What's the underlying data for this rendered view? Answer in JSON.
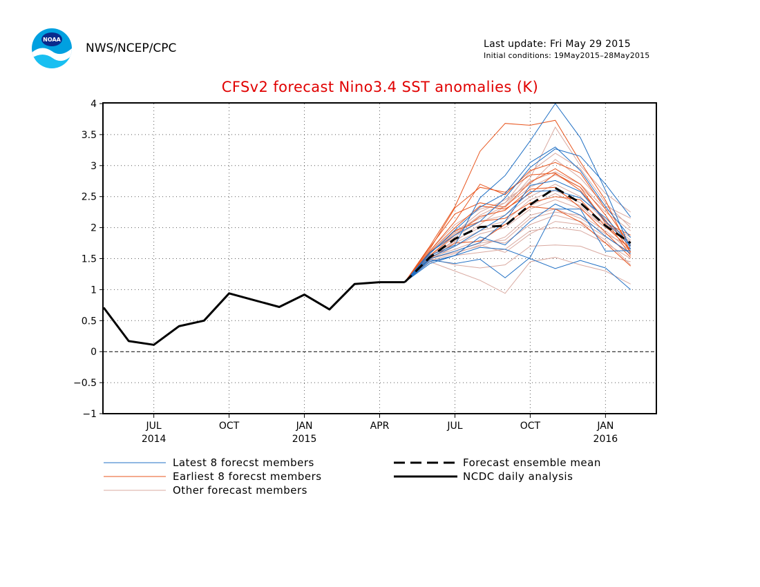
{
  "header": {
    "org": "NWS/NCEP/CPC",
    "logo_text": "NOAA",
    "last_update": "Last update: Fri May 29 2015",
    "initial_conditions": "Initial conditions: 19May2015–28May2015"
  },
  "colors": {
    "title": "#e00000",
    "latest": "#1f6fc4",
    "earliest": "#e8541c",
    "other": "#d9a9a0",
    "analysis": "#000000",
    "mean": "#000000"
  },
  "chart_data": {
    "type": "line",
    "title": "CFSv2 forecast Nino3.4 SST anomalies (K)",
    "xlabel": "",
    "ylabel": "",
    "ylim": [
      -1,
      4
    ],
    "yticks": [
      -1,
      -0.5,
      0,
      0.5,
      1,
      1.5,
      2,
      2.5,
      3,
      3.5,
      4
    ],
    "ytick_labels": [
      "−1",
      "−0.5",
      "0",
      "0.5",
      "1",
      "1.5",
      "2",
      "2.5",
      "3",
      "3.5",
      "4"
    ],
    "x_range": [
      "2014-05",
      "2016-03"
    ],
    "xticks": [
      {
        "month": "2014-07",
        "line1": "JUL",
        "line2": "2014"
      },
      {
        "month": "2014-10",
        "line1": "OCT",
        "line2": ""
      },
      {
        "month": "2015-01",
        "line1": "JAN",
        "line2": "2015"
      },
      {
        "month": "2015-04",
        "line1": "APR",
        "line2": ""
      },
      {
        "month": "2015-07",
        "line1": "JUL",
        "line2": ""
      },
      {
        "month": "2015-10",
        "line1": "OCT",
        "line2": ""
      },
      {
        "month": "2016-01",
        "line1": "JAN",
        "line2": "2016"
      }
    ],
    "grid": "dotted",
    "forecast_months": [
      "2015-05",
      "2015-06",
      "2015-07",
      "2015-08",
      "2015-09",
      "2015-10",
      "2015-11",
      "2015-12",
      "2016-01",
      "2016-02"
    ],
    "analysis": {
      "name": "NCDC daily analysis",
      "months": [
        "2014-05",
        "2014-06",
        "2014-07",
        "2014-08",
        "2014-09",
        "2014-10",
        "2014-11",
        "2014-12",
        "2015-01",
        "2015-02",
        "2015-03",
        "2015-04",
        "2015-05"
      ],
      "values": [
        0.71,
        0.17,
        0.11,
        0.41,
        0.5,
        0.94,
        0.83,
        0.72,
        0.92,
        0.68,
        1.09,
        1.12,
        1.12
      ]
    },
    "ensemble_mean": {
      "name": "Forecast ensemble mean",
      "values": [
        1.12,
        1.52,
        1.82,
        2.01,
        2.03,
        2.37,
        2.64,
        2.4,
        2.03,
        1.75
      ]
    },
    "latest_members": {
      "name": "Latest 8 forecst members",
      "series": [
        [
          1.12,
          1.42,
          1.55,
          1.68,
          1.65,
          1.5,
          1.34,
          1.47,
          1.35,
          1.0
        ],
        [
          1.12,
          1.55,
          1.72,
          2.48,
          2.84,
          3.4,
          4.0,
          3.45,
          2.6,
          1.65
        ],
        [
          1.12,
          1.48,
          1.42,
          1.49,
          1.19,
          1.52,
          2.3,
          2.3,
          1.62,
          1.63
        ],
        [
          1.12,
          1.6,
          1.88,
          2.1,
          2.48,
          2.97,
          3.27,
          3.15,
          2.7,
          2.17
        ],
        [
          1.12,
          1.5,
          1.62,
          1.76,
          2.1,
          2.68,
          2.76,
          2.58,
          2.1,
          1.7
        ],
        [
          1.12,
          1.58,
          1.96,
          2.33,
          2.55,
          3.05,
          3.3,
          2.92,
          2.34,
          1.84
        ],
        [
          1.12,
          1.45,
          1.55,
          1.85,
          1.72,
          2.1,
          2.38,
          2.2,
          1.86,
          1.58
        ],
        [
          1.12,
          1.52,
          1.7,
          1.95,
          2.2,
          2.58,
          2.6,
          2.48,
          2.16,
          1.72
        ]
      ]
    },
    "earliest_members": {
      "name": "Earliest 8 forecst members",
      "series": [
        [
          1.12,
          1.7,
          2.34,
          3.23,
          3.68,
          3.65,
          3.73,
          3.06,
          2.44,
          1.6
        ],
        [
          1.12,
          1.65,
          2.32,
          2.65,
          2.57,
          2.85,
          2.88,
          2.6,
          2.12,
          1.55
        ],
        [
          1.12,
          1.6,
          2.0,
          2.35,
          2.3,
          2.55,
          2.87,
          2.65,
          2.07,
          1.88
        ],
        [
          1.12,
          1.5,
          1.75,
          1.78,
          2.05,
          2.34,
          2.3,
          2.09,
          1.75,
          1.38
        ],
        [
          1.12,
          1.62,
          2.1,
          2.7,
          2.53,
          2.92,
          3.05,
          2.88,
          2.3,
          1.71
        ],
        [
          1.12,
          1.55,
          1.88,
          2.18,
          2.28,
          2.62,
          2.65,
          2.32,
          1.92,
          1.52
        ],
        [
          1.12,
          1.58,
          1.95,
          2.1,
          2.15,
          2.4,
          2.5,
          2.45,
          2.02,
          1.65
        ],
        [
          1.12,
          1.68,
          2.22,
          2.4,
          2.33,
          2.73,
          2.95,
          2.7,
          2.2,
          1.6
        ]
      ]
    },
    "other_members": {
      "name": "Other forecast members",
      "series": [
        [
          1.12,
          1.45,
          1.3,
          1.15,
          0.94,
          1.45,
          1.52,
          1.4,
          1.3,
          1.09
        ],
        [
          1.12,
          1.55,
          1.78,
          2.05,
          2.35,
          2.8,
          3.62,
          3.0,
          2.55,
          2.25
        ],
        [
          1.12,
          1.5,
          1.4,
          1.35,
          1.4,
          1.7,
          1.72,
          1.7,
          1.55,
          1.45
        ],
        [
          1.12,
          1.6,
          1.9,
          2.2,
          2.4,
          2.9,
          3.2,
          2.95,
          2.4,
          2.0
        ],
        [
          1.12,
          1.48,
          1.7,
          1.9,
          2.0,
          2.3,
          2.45,
          2.3,
          2.0,
          1.75
        ],
        [
          1.12,
          1.52,
          1.65,
          1.8,
          1.75,
          2.05,
          2.2,
          2.1,
          1.85,
          1.6
        ],
        [
          1.12,
          1.58,
          1.95,
          2.15,
          2.35,
          2.65,
          2.85,
          2.65,
          2.25,
          1.95
        ],
        [
          1.12,
          1.45,
          1.55,
          1.6,
          1.65,
          1.95,
          2.0,
          1.95,
          1.75,
          1.5
        ],
        [
          1.12,
          1.55,
          1.85,
          2.1,
          2.2,
          2.5,
          2.7,
          2.5,
          2.1,
          1.8
        ],
        [
          1.12,
          1.5,
          1.6,
          1.7,
          1.85,
          2.2,
          2.3,
          2.15,
          1.9,
          1.7
        ],
        [
          1.12,
          1.62,
          2.05,
          2.3,
          2.4,
          2.75,
          2.9,
          2.7,
          2.3,
          2.05
        ],
        [
          1.12,
          1.47,
          1.58,
          1.72,
          1.6,
          1.9,
          2.1,
          2.05,
          1.8,
          1.4
        ],
        [
          1.12,
          1.53,
          1.8,
          2.0,
          2.1,
          2.45,
          2.6,
          2.4,
          2.05,
          1.85
        ],
        [
          1.12,
          1.56,
          1.75,
          1.95,
          2.05,
          2.35,
          2.55,
          2.35,
          2.0,
          1.78
        ],
        [
          1.12,
          1.49,
          1.62,
          1.75,
          1.8,
          2.15,
          2.25,
          2.2,
          1.95,
          1.62
        ],
        [
          1.12,
          1.6,
          1.92,
          2.25,
          2.45,
          2.7,
          3.1,
          2.8,
          2.35,
          2.15
        ]
      ]
    },
    "legend": [
      {
        "label": "Latest 8 forecst members",
        "style": "latest"
      },
      {
        "label": "Earliest 8 forecst members",
        "style": "earliest"
      },
      {
        "label": "Other forecast members",
        "style": "other"
      },
      {
        "label": "Forecast ensemble mean",
        "style": "mean"
      },
      {
        "label": "NCDC daily analysis",
        "style": "analysis"
      }
    ]
  }
}
